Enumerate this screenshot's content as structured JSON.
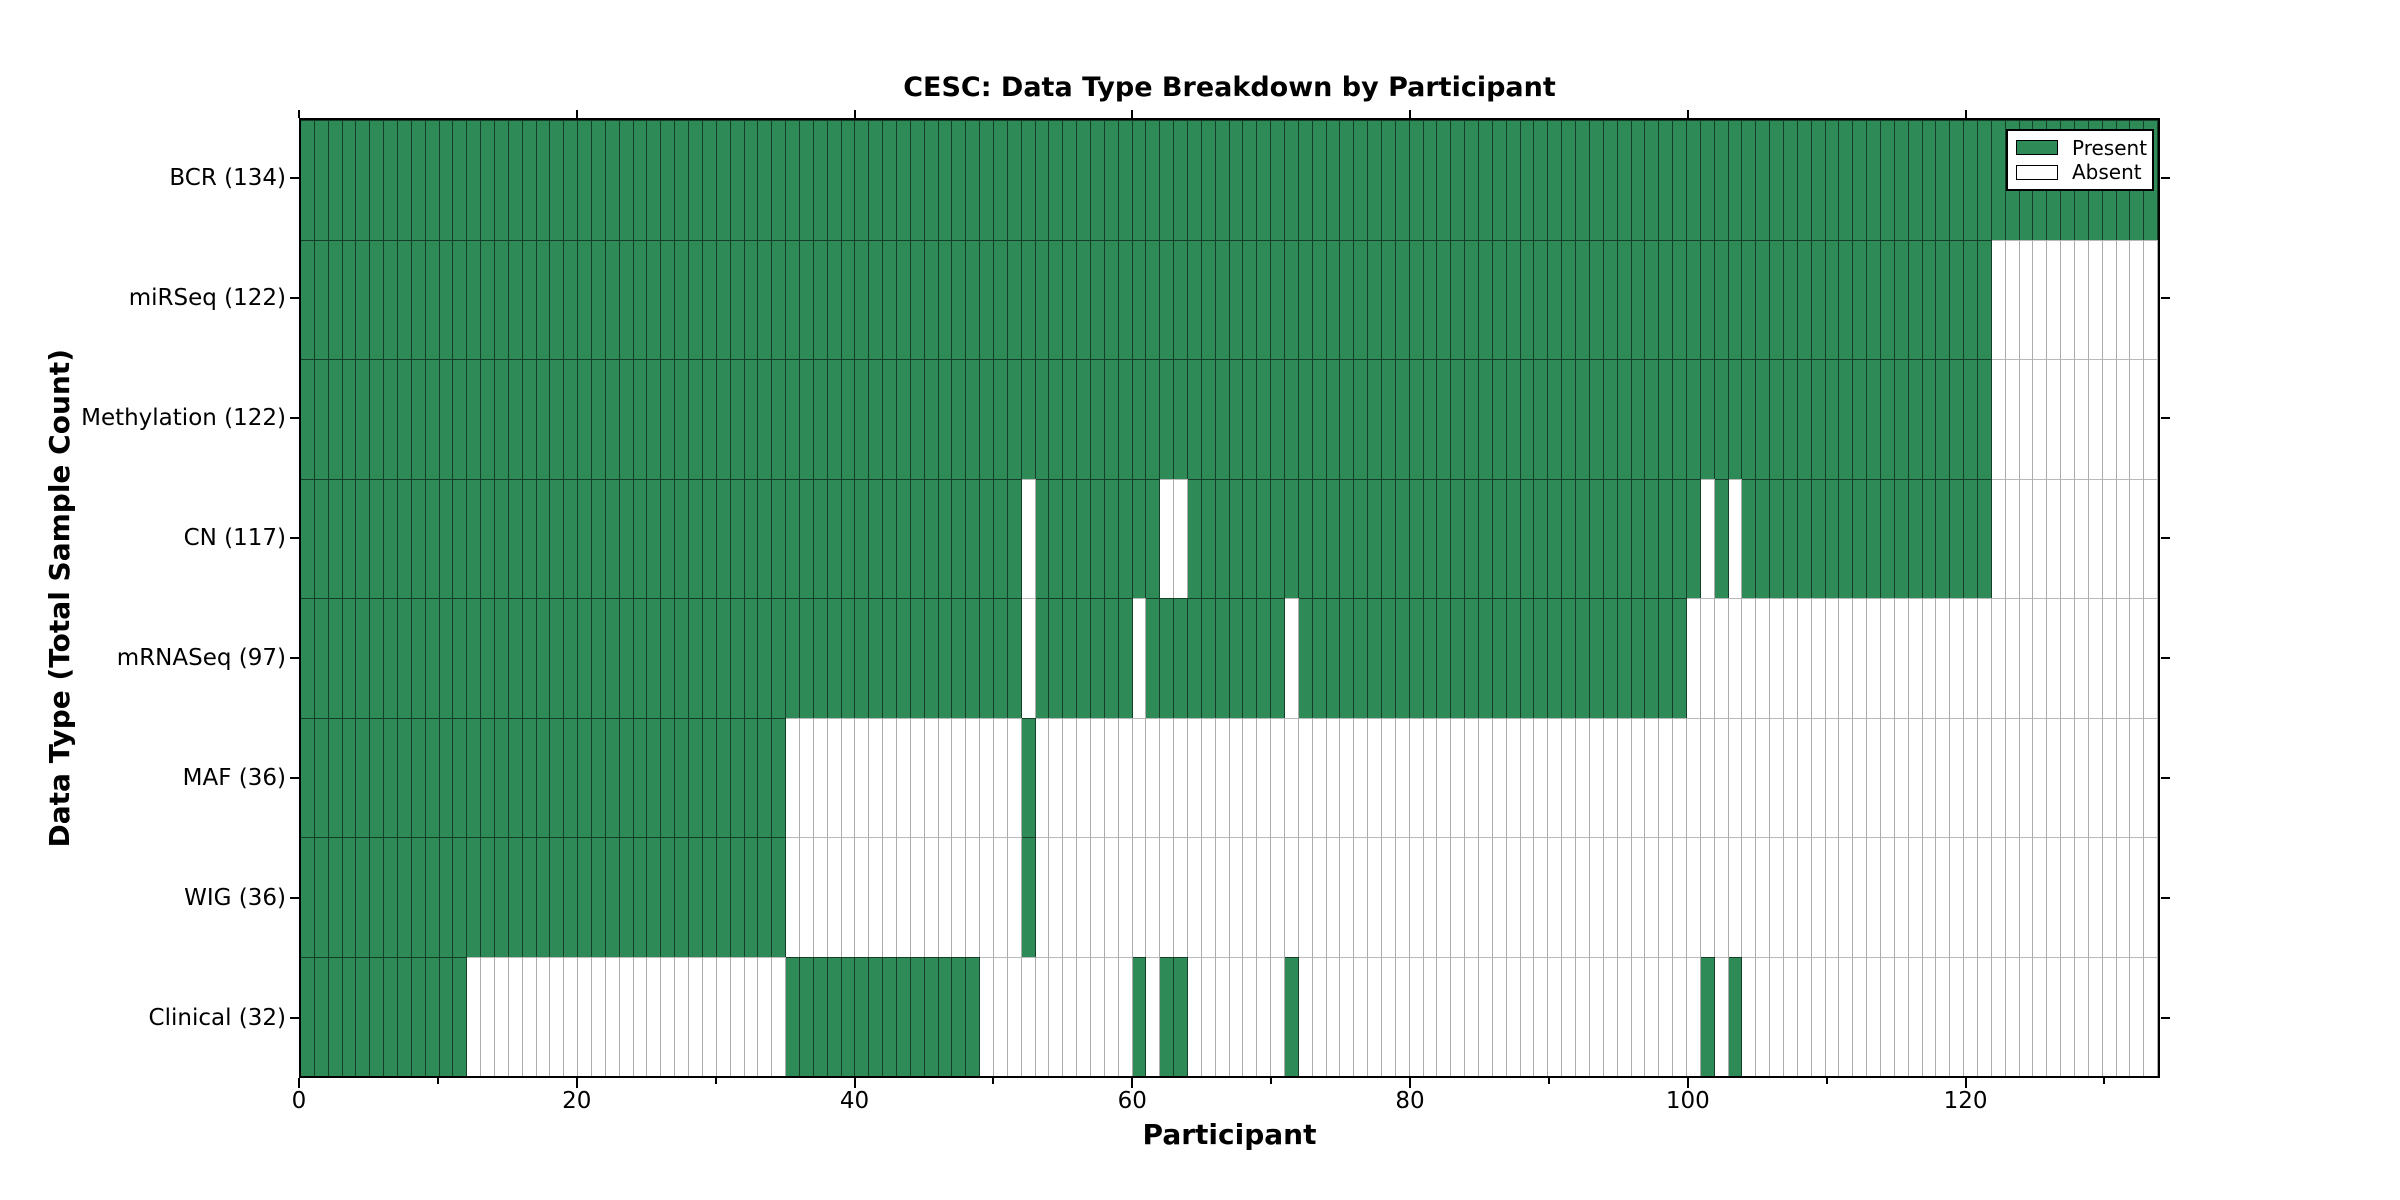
{
  "figure": {
    "title": "CESC: Data Type Breakdown by Participant",
    "xlabel": "Participant",
    "ylabel": "Data Type (Total Sample Count)",
    "legend": {
      "present_label": "Present",
      "absent_label": "Absent"
    },
    "colors": {
      "present": "#2e8b57",
      "absent": "#ffffff",
      "frame": "#000000",
      "grid_on_present": "rgba(0,0,0,0.55)",
      "grid_on_absent": "#ababab"
    }
  },
  "chart_data": {
    "type": "heatmap",
    "title": "CESC: Data Type Breakdown by Participant",
    "xlabel": "Participant",
    "ylabel": "Data Type (Total Sample Count)",
    "legend_entries": [
      {
        "label": "Present",
        "color": "#2e8b57"
      },
      {
        "label": "Absent",
        "color": "#ffffff"
      }
    ],
    "legend_position": "upper right",
    "n_participants": 134,
    "xlim": [
      0,
      134
    ],
    "x_ticks_major": [
      0,
      20,
      40,
      60,
      80,
      100,
      120
    ],
    "x_ticks_minor": [
      10,
      30,
      50,
      70,
      90,
      110,
      130
    ],
    "grid": false,
    "rows": [
      {
        "name": "bcr",
        "label": "BCR (134)",
        "total_samples": 134,
        "present_ranges": [
          [
            0,
            134
          ]
        ]
      },
      {
        "name": "mirseq",
        "label": "miRSeq (122)",
        "total_samples": 122,
        "present_ranges": [
          [
            0,
            122
          ]
        ]
      },
      {
        "name": "methylation",
        "label": "Methylation (122)",
        "total_samples": 122,
        "present_ranges": [
          [
            0,
            122
          ]
        ]
      },
      {
        "name": "cn",
        "label": "CN (117)",
        "total_samples": 117,
        "present_ranges": [
          [
            0,
            52
          ],
          [
            53,
            62
          ],
          [
            64,
            101
          ],
          [
            102,
            103
          ],
          [
            104,
            122
          ]
        ]
      },
      {
        "name": "mrnaseq",
        "label": "mRNASeq (97)",
        "total_samples": 97,
        "present_ranges": [
          [
            0,
            52
          ],
          [
            53,
            60
          ],
          [
            61,
            71
          ],
          [
            72,
            100
          ]
        ]
      },
      {
        "name": "maf",
        "label": "MAF (36)",
        "total_samples": 36,
        "present_ranges": [
          [
            0,
            35
          ],
          [
            52,
            53
          ]
        ]
      },
      {
        "name": "wig",
        "label": "WIG (36)",
        "total_samples": 36,
        "present_ranges": [
          [
            0,
            35
          ],
          [
            52,
            53
          ]
        ]
      },
      {
        "name": "clinical",
        "label": "Clinical (32)",
        "total_samples": 32,
        "present_ranges": [
          [
            0,
            12
          ],
          [
            35,
            49
          ],
          [
            60,
            61
          ],
          [
            62,
            64
          ],
          [
            71,
            72
          ],
          [
            101,
            102
          ],
          [
            103,
            104
          ]
        ]
      }
    ]
  }
}
